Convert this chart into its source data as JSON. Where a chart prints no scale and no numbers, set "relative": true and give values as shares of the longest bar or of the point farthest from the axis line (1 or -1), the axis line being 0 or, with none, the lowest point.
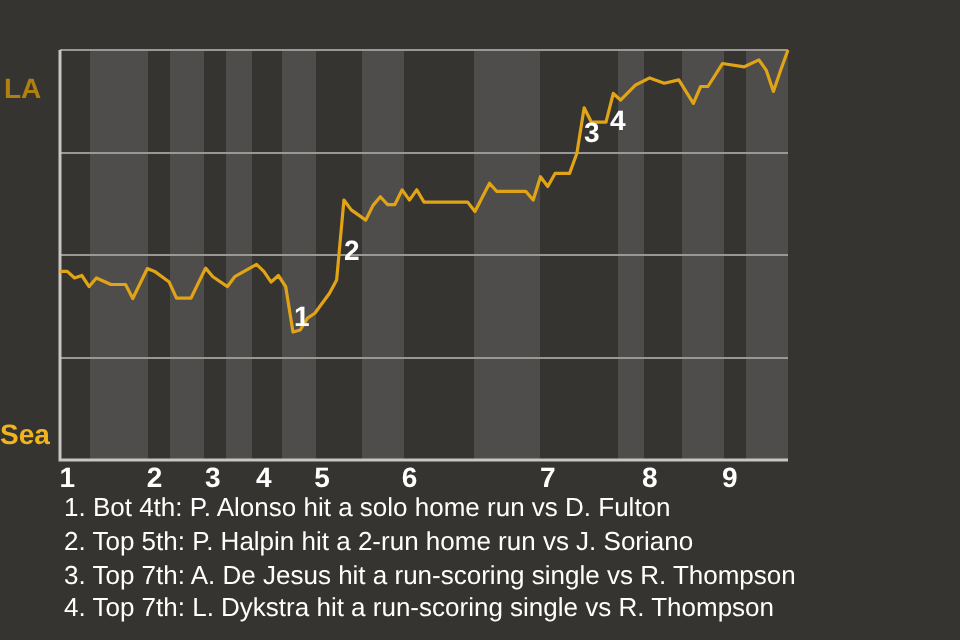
{
  "chart_data": {
    "type": "line",
    "relative": true,
    "categories": [
      null,
      "1",
      null,
      null,
      null,
      null,
      null,
      null,
      null,
      null,
      null,
      null,
      null,
      "2",
      null,
      null,
      null,
      null,
      null,
      null,
      null,
      "3",
      null,
      null,
      null,
      null,
      null,
      null,
      "4",
      null,
      null,
      null,
      null,
      null,
      null,
      null,
      "5",
      null,
      null,
      null,
      null,
      null,
      null,
      null,
      null,
      null,
      null,
      null,
      "6",
      null,
      null,
      null,
      null,
      null,
      null,
      null,
      null,
      null,
      null,
      null,
      null,
      null,
      null,
      null,
      null,
      null,
      null,
      "7",
      null,
      null,
      null,
      null,
      null,
      null,
      null,
      null,
      null,
      null,
      null,
      null,
      null,
      "8",
      null,
      null,
      null,
      null,
      null,
      null,
      null,
      null,
      null,
      null,
      "9",
      null,
      null,
      null,
      null,
      null,
      null,
      null,
      null
    ],
    "grid": "y",
    "legend": false,
    "marker": "none",
    "line_style": "solid",
    "series": [
      {
        "color": "#e0a416",
        "values": [
          0.46,
          0.46,
          0.444,
          0.45,
          0.423,
          0.444,
          null,
          0.428,
          null,
          0.428,
          0.394,
          null,
          0.467,
          0.46,
          null,
          0.434,
          0.395,
          null,
          0.395,
          null,
          0.468,
          0.447,
          null,
          0.423,
          0.447,
          null,
          null,
          0.477,
          0.46,
          0.434,
          0.45,
          0.423,
          0.312,
          0.317,
          0.346,
          0.358,
          null,
          0.406,
          0.439,
          0.634,
          0.61,
          null,
          0.585,
          0.621,
          0.642,
          0.623,
          0.623,
          0.659,
          0.634,
          0.659,
          0.629,
          null,
          null,
          null,
          null,
          null,
          0.629,
          0.606,
          null,
          0.675,
          0.655,
          null,
          null,
          null,
          0.655,
          0.634,
          0.691,
          0.667,
          0.699,
          null,
          0.699,
          0.748,
          0.859,
          0.824,
          null,
          0.824,
          0.894,
          0.878,
          null,
          0.914,
          null,
          0.932,
          null,
          0.919,
          null,
          0.927,
          null,
          0.87,
          0.911,
          0.911,
          null,
          0.967,
          null,
          null,
          0.959,
          null,
          0.976,
          0.951,
          0.899,
          0.951,
          1
        ]
      }
    ],
    "annotations": [
      "LA",
      "Sea",
      "1",
      "2",
      "3",
      "4",
      "1. Bot 4th: P. Alonso hit a solo home run vs D. Fulton",
      "2. Top 5th: P. Halpin hit a 2-run home run vs J. Soriano",
      "3. Top 7th: A. De Jesus hit a run-scoring single vs R. Thompson",
      "4. Top 7th: L. Dykstra hit a run-scoring single vs R. Thompson"
    ]
  }
}
